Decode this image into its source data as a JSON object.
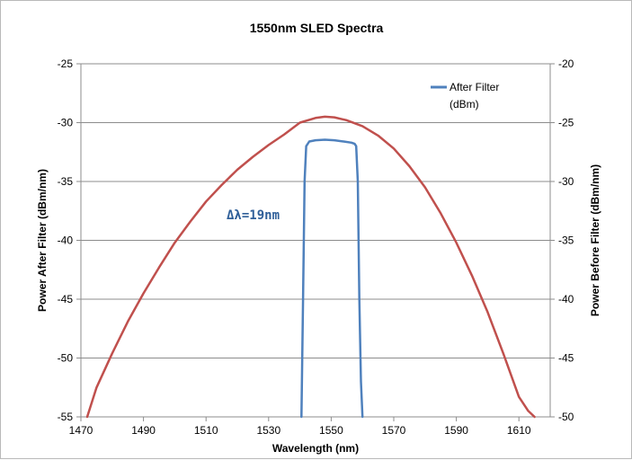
{
  "chart_data": {
    "type": "line",
    "title": "1550nm SLED Spectra",
    "xlabel": "Wavelength (nm)",
    "ylabel_left": "Power After Filter (dBm/nm)",
    "ylabel_right": "Power Before Filter (dBm/nm)",
    "xlim": [
      1470,
      1620
    ],
    "ylim_left": [
      -55,
      -25
    ],
    "ylim_right": [
      -50,
      -20
    ],
    "x_ticks": [
      "1470",
      "1490",
      "1510",
      "1530",
      "1550",
      "1570",
      "1590",
      "1610"
    ],
    "y_left_ticks": [
      "-25",
      "-30",
      "-35",
      "-40",
      "-45",
      "-50",
      "-55"
    ],
    "y_right_ticks": [
      "-20",
      "-25",
      "-30",
      "-35",
      "-40",
      "-45",
      "-50"
    ],
    "grid": "horizontal",
    "legend_position": "top-right",
    "annotation": "Δλ=19nm",
    "series": [
      {
        "name": "After Filter (dBm)",
        "axis": "left",
        "color": "#4f81bd",
        "x": [
          1540.5,
          1541.0,
          1541.5,
          1542.0,
          1543.0,
          1545.0,
          1548.0,
          1551.0,
          1554.0,
          1556.5,
          1557.5,
          1558.0,
          1558.5,
          1559.0,
          1559.5,
          1560.0
        ],
        "y": [
          -55.0,
          -45.0,
          -35.0,
          -32.0,
          -31.6,
          -31.5,
          -31.45,
          -31.5,
          -31.6,
          -31.7,
          -31.8,
          -32.0,
          -35.0,
          -45.0,
          -52.0,
          -55.0
        ]
      },
      {
        "color": "#c0504d",
        "axis": "right",
        "x": [
          1472,
          1475,
          1480,
          1485,
          1490,
          1495,
          1500,
          1505,
          1510,
          1515,
          1520,
          1525,
          1530,
          1535,
          1540,
          1545,
          1548,
          1551,
          1555,
          1560,
          1565,
          1570,
          1575,
          1580,
          1585,
          1590,
          1595,
          1600,
          1605,
          1610,
          1613,
          1615
        ],
        "y": [
          -50.0,
          -47.5,
          -44.6,
          -41.9,
          -39.5,
          -37.3,
          -35.2,
          -33.4,
          -31.7,
          -30.3,
          -29.0,
          -27.9,
          -26.9,
          -26.0,
          -25.0,
          -24.6,
          -24.5,
          -24.55,
          -24.8,
          -25.3,
          -26.1,
          -27.2,
          -28.7,
          -30.5,
          -32.7,
          -35.2,
          -38.0,
          -41.1,
          -44.6,
          -48.3,
          -49.5,
          -50.0
        ]
      }
    ]
  }
}
